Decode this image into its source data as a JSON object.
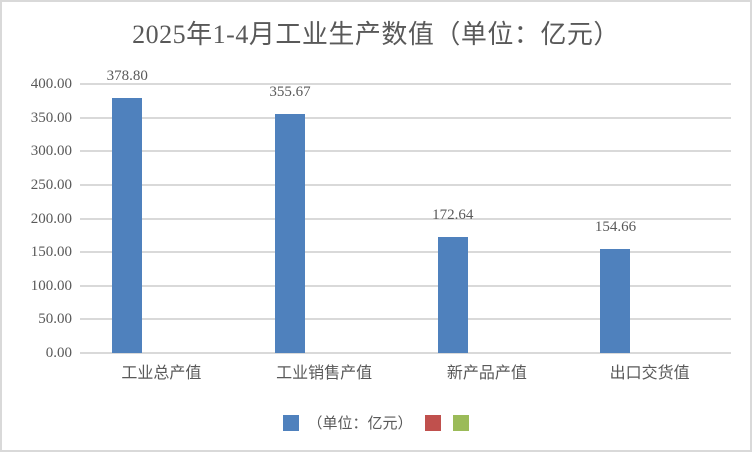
{
  "chart_data": {
    "type": "bar",
    "title": "2025年1-4月工业生产数值（单位：亿元）",
    "categories": [
      "工业总产值",
      "工业销售产值",
      "新产品产值",
      "出口交货值"
    ],
    "series": [
      {
        "name": "（单位：亿元）",
        "color": "#4F81BD",
        "values": [
          378.8,
          355.67,
          172.64,
          154.66
        ],
        "labels": [
          "378.80",
          "355.67",
          "172.64",
          "154.66"
        ]
      },
      {
        "name": "",
        "color": "#C0504D",
        "values": [],
        "labels": []
      },
      {
        "name": "",
        "color": "#9BBB59",
        "values": [],
        "labels": []
      }
    ],
    "ylim": [
      0,
      400
    ],
    "ytick_step": 50,
    "ytick_labels": [
      "0.00",
      "50.00",
      "100.00",
      "150.00",
      "200.00",
      "250.00",
      "300.00",
      "350.00",
      "400.00"
    ],
    "grid": true,
    "legend_position": "bottom"
  },
  "colors": {
    "text": "#595959",
    "gridline": "#D9D9D9",
    "border": "#D9D9D9",
    "background": "#FFFFFF"
  }
}
